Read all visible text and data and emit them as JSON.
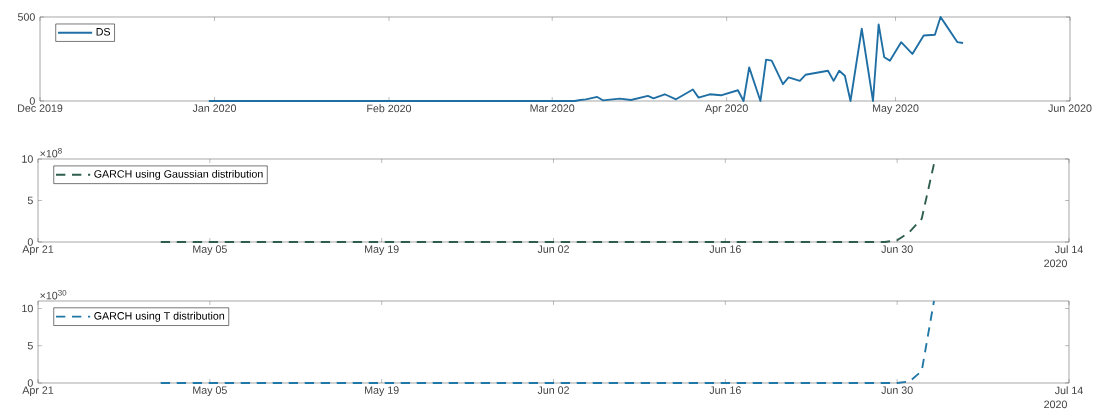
{
  "chart_data": [
    {
      "type": "line",
      "xlim": [
        "2019-12-01",
        "2020-06-01"
      ],
      "ylim": [
        0,
        500
      ],
      "yticks": [
        0,
        500
      ],
      "xticks": [
        {
          "value": "2019-12-01",
          "label": "Dec 2019"
        },
        {
          "value": "2020-01-01",
          "label": "Jan 2020"
        },
        {
          "value": "2020-02-01",
          "label": "Feb 2020"
        },
        {
          "value": "2020-03-01",
          "label": "Mar 2020"
        },
        {
          "value": "2020-04-01",
          "label": "Apr 2020"
        },
        {
          "value": "2020-05-01",
          "label": "May 2020"
        },
        {
          "value": "2020-06-01",
          "label": "Jun 2020"
        }
      ],
      "legend": "top left",
      "line_style": "solid",
      "series": [
        {
          "name": "DS",
          "color": "#1f6fa5",
          "x": [
            "2019-12-31",
            "2020-03-05",
            "2020-03-06",
            "2020-03-07",
            "2020-03-09",
            "2020-03-10",
            "2020-03-13",
            "2020-03-15",
            "2020-03-18",
            "2020-03-19",
            "2020-03-21",
            "2020-03-23",
            "2020-03-26",
            "2020-03-27",
            "2020-03-29",
            "2020-03-31",
            "2020-04-03",
            "2020-04-04",
            "2020-04-05",
            "2020-04-07",
            "2020-04-08",
            "2020-04-09",
            "2020-04-11",
            "2020-04-12",
            "2020-04-14",
            "2020-04-15",
            "2020-04-19",
            "2020-04-20",
            "2020-04-21",
            "2020-04-22",
            "2020-04-23",
            "2020-04-25",
            "2020-04-27",
            "2020-04-28",
            "2020-04-29",
            "2020-04-30",
            "2020-05-02",
            "2020-05-04",
            "2020-05-06",
            "2020-05-08",
            "2020-05-09",
            "2020-05-10",
            "2020-05-12",
            "2020-05-13"
          ],
          "values": [
            0,
            0,
            6,
            10,
            24,
            4,
            14,
            6,
            30,
            16,
            40,
            10,
            68,
            20,
            40,
            34,
            64,
            0,
            200,
            0,
            246,
            240,
            100,
            140,
            120,
            156,
            180,
            120,
            180,
            150,
            0,
            430,
            0,
            456,
            260,
            240,
            350,
            280,
            390,
            394,
            500,
            450,
            350,
            345
          ]
        }
      ]
    },
    {
      "type": "line",
      "xlim": [
        "2020-04-21",
        "2020-07-14"
      ],
      "ylim": [
        0,
        10
      ],
      "yticks": [
        0,
        5,
        10
      ],
      "xticks": [
        {
          "value": "2020-04-21",
          "label": "Apr 21"
        },
        {
          "value": "2020-05-05",
          "label": "May 05"
        },
        {
          "value": "2020-05-19",
          "label": "May 19"
        },
        {
          "value": "2020-06-02",
          "label": "Jun 02"
        },
        {
          "value": "2020-06-16",
          "label": "Jun 16"
        },
        {
          "value": "2020-06-30",
          "label": "Jun 30"
        },
        {
          "value": "2020-07-14",
          "label": "Jul 14"
        }
      ],
      "annotations": [
        "×10$^{8}$",
        "2020"
      ],
      "legend": "top left",
      "line_style": "dashed",
      "series": [
        {
          "name": "GARCH using Gaussian distribution",
          "color": "#2e5e4c",
          "x": [
            "2020-05-01",
            "2020-06-29",
            "2020-06-30",
            "2020-07-01",
            "2020-07-02",
            "2020-07-03"
          ],
          "values": [
            0,
            0,
            0.2,
            1.2,
            2.8,
            9.4
          ]
        }
      ]
    },
    {
      "type": "line",
      "xlim": [
        "2020-04-21",
        "2020-07-14"
      ],
      "ylim": [
        0,
        11
      ],
      "yticks": [
        0,
        5,
        10
      ],
      "xticks": [
        {
          "value": "2020-04-21",
          "label": "Apr 21"
        },
        {
          "value": "2020-05-05",
          "label": "May 05"
        },
        {
          "value": "2020-05-19",
          "label": "May 19"
        },
        {
          "value": "2020-06-02",
          "label": "Jun 02"
        },
        {
          "value": "2020-06-16",
          "label": "Jun 16"
        },
        {
          "value": "2020-06-30",
          "label": "Jun 30"
        },
        {
          "value": "2020-07-14",
          "label": "Jul 14"
        }
      ],
      "annotations": [
        "×10$^{30}$",
        "2020"
      ],
      "legend": "top left",
      "line_style": "dashed",
      "series": [
        {
          "name": "GARCH using T distribution",
          "color": "#1f78a6",
          "x": [
            "2020-05-01",
            "2020-06-30",
            "2020-07-01",
            "2020-07-02",
            "2020-07-03"
          ],
          "values": [
            0,
            0,
            0.2,
            1.6,
            11
          ]
        }
      ]
    }
  ]
}
